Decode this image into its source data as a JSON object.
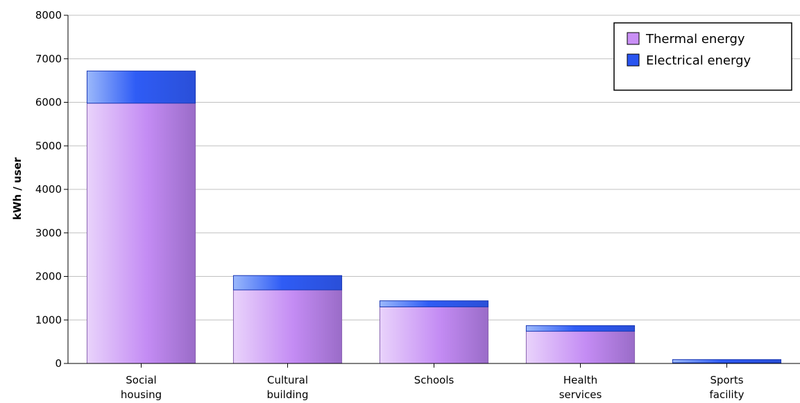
{
  "chart_data": {
    "type": "bar",
    "stacked": true,
    "categories": [
      "Social\nhousing",
      "Cultural\nbuilding",
      "Schools",
      "Health\nservices",
      "Sports\nfacility"
    ],
    "series": [
      {
        "name": "Thermal energy",
        "color": "#c98ff5",
        "values": [
          5980,
          1690,
          1300,
          740,
          15
        ]
      },
      {
        "name": "Electrical energy",
        "color": "#2a55f0",
        "values": [
          740,
          330,
          140,
          130,
          75
        ]
      }
    ],
    "ylabel": "kWh / user",
    "xlabel": "",
    "ylim": [
      0,
      8000
    ],
    "yticks": [
      0,
      1000,
      2000,
      3000,
      4000,
      5000,
      6000,
      7000,
      8000
    ],
    "grid": true,
    "legend": "top-right"
  }
}
